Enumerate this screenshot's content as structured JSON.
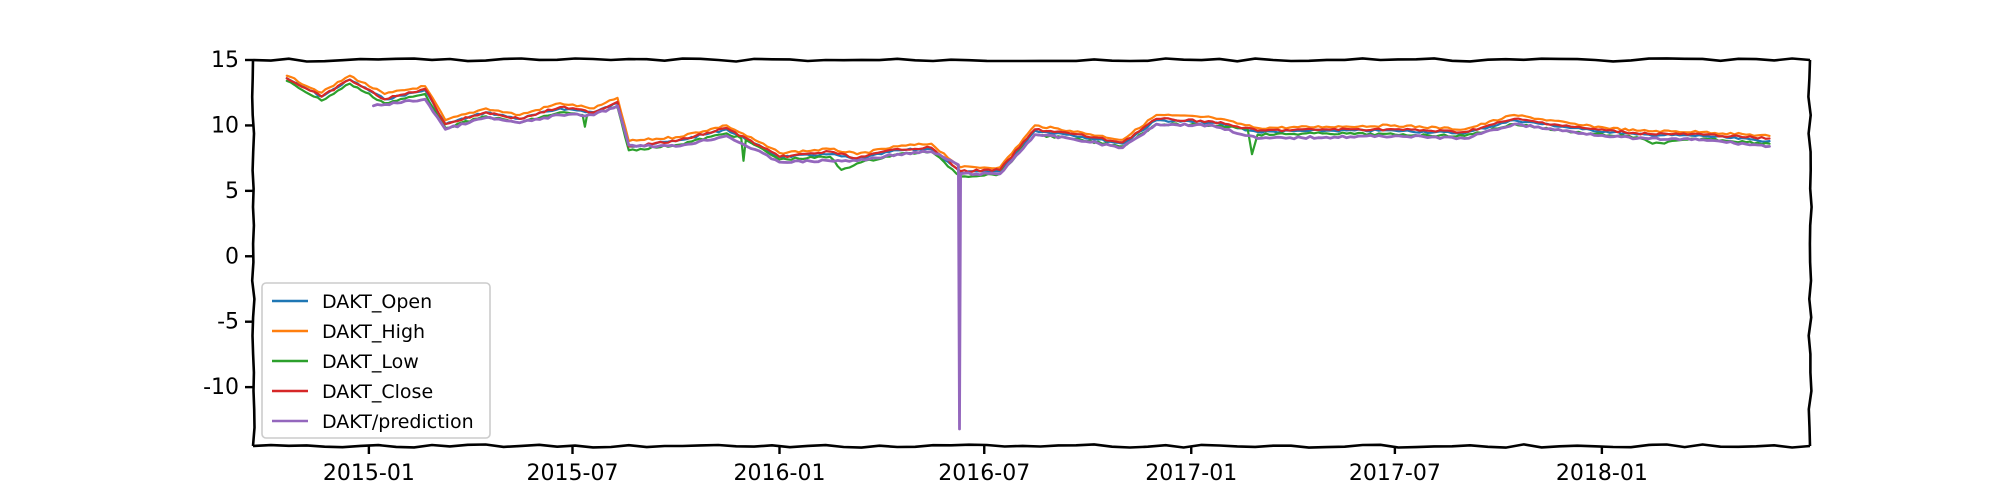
{
  "chart_data": {
    "type": "line",
    "title": "",
    "xlabel": "",
    "ylabel": "",
    "x_range": [
      "2014-09-20",
      "2018-07-05"
    ],
    "ylim": [
      -14.5,
      15
    ],
    "grid": false,
    "legend_placement": "lower-left",
    "x_ticks": [
      "2015-01",
      "2015-07",
      "2016-01",
      "2016-07",
      "2017-01",
      "2017-07",
      "2018-01"
    ],
    "x_tick_dates": [
      "2015-01-01",
      "2015-07-01",
      "2016-01-01",
      "2016-07-01",
      "2017-01-01",
      "2017-07-01",
      "2018-01-01"
    ],
    "y_ticks": [
      15,
      10,
      5,
      0,
      -5,
      -10
    ],
    "y_tick_labels": [
      "15",
      "10",
      "5",
      "0",
      "-5",
      "-10"
    ],
    "series": [
      {
        "name": "DAKT_Open",
        "color": "#1f77b4",
        "points": [
          [
            "2014-10-20",
            13.6
          ],
          [
            "2014-11-20",
            12.2
          ],
          [
            "2014-12-15",
            13.5
          ],
          [
            "2015-01-15",
            12.0
          ],
          [
            "2015-02-20",
            12.7
          ],
          [
            "2015-03-10",
            10.1
          ],
          [
            "2015-04-15",
            11.0
          ],
          [
            "2015-05-15",
            10.5
          ],
          [
            "2015-06-20",
            11.3
          ],
          [
            "2015-07-20",
            11.0
          ],
          [
            "2015-08-10",
            11.7
          ],
          [
            "2015-08-20",
            8.4
          ],
          [
            "2015-10-01",
            8.8
          ],
          [
            "2015-11-15",
            9.7
          ],
          [
            "2016-01-01",
            7.6
          ],
          [
            "2016-02-15",
            7.8
          ],
          [
            "2016-03-10",
            7.4
          ],
          [
            "2016-04-15",
            8.1
          ],
          [
            "2016-05-15",
            8.2
          ],
          [
            "2016-06-10",
            6.4
          ],
          [
            "2016-07-15",
            6.5
          ],
          [
            "2016-08-15",
            9.6
          ],
          [
            "2016-09-15",
            9.3
          ],
          [
            "2016-11-01",
            8.6
          ],
          [
            "2016-12-01",
            10.4
          ],
          [
            "2017-01-20",
            10.2
          ],
          [
            "2017-03-01",
            9.5
          ],
          [
            "2017-05-01",
            9.6
          ],
          [
            "2017-07-01",
            9.6
          ],
          [
            "2017-09-01",
            9.4
          ],
          [
            "2017-10-15",
            10.4
          ],
          [
            "2017-12-15",
            9.7
          ],
          [
            "2018-02-01",
            9.3
          ],
          [
            "2018-04-01",
            9.2
          ],
          [
            "2018-05-30",
            8.8
          ]
        ]
      },
      {
        "name": "DAKT_High",
        "color": "#ff7f0e",
        "points": [
          [
            "2014-10-20",
            13.8
          ],
          [
            "2014-11-20",
            12.5
          ],
          [
            "2014-12-15",
            13.8
          ],
          [
            "2015-01-15",
            12.4
          ],
          [
            "2015-02-20",
            13.0
          ],
          [
            "2015-03-10",
            10.4
          ],
          [
            "2015-04-15",
            11.3
          ],
          [
            "2015-05-15",
            10.8
          ],
          [
            "2015-06-20",
            11.7
          ],
          [
            "2015-07-20",
            11.3
          ],
          [
            "2015-08-10",
            12.1
          ],
          [
            "2015-08-20",
            8.8
          ],
          [
            "2015-10-01",
            9.1
          ],
          [
            "2015-11-15",
            10.0
          ],
          [
            "2016-01-01",
            7.9
          ],
          [
            "2016-02-15",
            8.2
          ],
          [
            "2016-03-10",
            7.8
          ],
          [
            "2016-04-15",
            8.4
          ],
          [
            "2016-05-15",
            8.6
          ],
          [
            "2016-06-10",
            6.8
          ],
          [
            "2016-07-15",
            6.8
          ],
          [
            "2016-08-15",
            10.0
          ],
          [
            "2016-09-15",
            9.6
          ],
          [
            "2016-11-01",
            8.9
          ],
          [
            "2016-12-01",
            10.8
          ],
          [
            "2017-01-20",
            10.6
          ],
          [
            "2017-03-01",
            9.8
          ],
          [
            "2017-05-01",
            9.9
          ],
          [
            "2017-07-01",
            10.0
          ],
          [
            "2017-09-01",
            9.7
          ],
          [
            "2017-10-15",
            10.8
          ],
          [
            "2017-12-15",
            10.0
          ],
          [
            "2018-02-01",
            9.6
          ],
          [
            "2018-04-01",
            9.5
          ],
          [
            "2018-05-30",
            9.2
          ]
        ]
      },
      {
        "name": "DAKT_Low",
        "color": "#2ca02c",
        "points": [
          [
            "2014-10-20",
            13.4
          ],
          [
            "2014-11-20",
            11.9
          ],
          [
            "2014-12-15",
            13.2
          ],
          [
            "2015-01-15",
            11.7
          ],
          [
            "2015-02-20",
            12.4
          ],
          [
            "2015-03-10",
            9.8
          ],
          [
            "2015-04-15",
            10.7
          ],
          [
            "2015-05-15",
            10.2
          ],
          [
            "2015-06-20",
            11.0
          ],
          [
            "2015-07-10",
            10.8
          ],
          [
            "2015-07-12",
            9.9
          ],
          [
            "2015-07-14",
            10.8
          ],
          [
            "2015-08-10",
            11.4
          ],
          [
            "2015-08-20",
            8.1
          ],
          [
            "2015-10-01",
            8.5
          ],
          [
            "2015-11-15",
            9.4
          ],
          [
            "2015-11-28",
            9.0
          ],
          [
            "2015-11-30",
            7.3
          ],
          [
            "2015-12-02",
            8.9
          ],
          [
            "2016-01-01",
            7.4
          ],
          [
            "2016-02-15",
            7.6
          ],
          [
            "2016-02-25",
            6.6
          ],
          [
            "2016-03-10",
            7.1
          ],
          [
            "2016-04-15",
            7.8
          ],
          [
            "2016-05-15",
            8.0
          ],
          [
            "2016-06-10",
            6.1
          ],
          [
            "2016-07-15",
            6.3
          ],
          [
            "2016-08-15",
            9.3
          ],
          [
            "2016-09-15",
            9.0
          ],
          [
            "2016-11-01",
            8.4
          ],
          [
            "2016-12-01",
            10.1
          ],
          [
            "2017-01-20",
            10.0
          ],
          [
            "2017-02-20",
            9.8
          ],
          [
            "2017-02-24",
            7.8
          ],
          [
            "2017-03-01",
            9.3
          ],
          [
            "2017-05-01",
            9.4
          ],
          [
            "2017-07-01",
            9.3
          ],
          [
            "2017-09-01",
            9.2
          ],
          [
            "2017-10-15",
            10.1
          ],
          [
            "2017-12-15",
            9.4
          ],
          [
            "2018-02-01",
            9.1
          ],
          [
            "2018-02-15",
            8.6
          ],
          [
            "2018-04-01",
            9.0
          ],
          [
            "2018-05-30",
            8.6
          ]
        ]
      },
      {
        "name": "DAKT_Close",
        "color": "#d62728",
        "points": [
          [
            "2014-10-20",
            13.6
          ],
          [
            "2014-11-20",
            12.2
          ],
          [
            "2014-12-15",
            13.5
          ],
          [
            "2015-01-15",
            12.0
          ],
          [
            "2015-02-20",
            12.8
          ],
          [
            "2015-03-10",
            10.1
          ],
          [
            "2015-04-15",
            11.0
          ],
          [
            "2015-05-15",
            10.5
          ],
          [
            "2015-06-20",
            11.4
          ],
          [
            "2015-07-20",
            11.0
          ],
          [
            "2015-08-10",
            11.8
          ],
          [
            "2015-08-20",
            8.4
          ],
          [
            "2015-10-01",
            8.8
          ],
          [
            "2015-11-15",
            9.8
          ],
          [
            "2016-01-01",
            7.6
          ],
          [
            "2016-02-15",
            8.0
          ],
          [
            "2016-03-10",
            7.5
          ],
          [
            "2016-04-15",
            8.2
          ],
          [
            "2016-05-15",
            8.3
          ],
          [
            "2016-06-10",
            6.5
          ],
          [
            "2016-07-15",
            6.6
          ],
          [
            "2016-08-15",
            9.7
          ],
          [
            "2016-09-15",
            9.4
          ],
          [
            "2016-11-01",
            8.7
          ],
          [
            "2016-12-01",
            10.5
          ],
          [
            "2017-01-20",
            10.3
          ],
          [
            "2017-03-01",
            9.6
          ],
          [
            "2017-05-01",
            9.7
          ],
          [
            "2017-07-01",
            9.7
          ],
          [
            "2017-09-01",
            9.5
          ],
          [
            "2017-10-15",
            10.5
          ],
          [
            "2017-12-15",
            9.8
          ],
          [
            "2018-02-01",
            9.4
          ],
          [
            "2018-04-01",
            9.3
          ],
          [
            "2018-05-30",
            9.0
          ]
        ]
      },
      {
        "name": "DAKT/prediction",
        "color": "#9467bd",
        "points": [
          [
            "2015-01-05",
            11.5
          ],
          [
            "2015-02-20",
            12.0
          ],
          [
            "2015-03-10",
            9.7
          ],
          [
            "2015-04-15",
            10.6
          ],
          [
            "2015-05-15",
            10.2
          ],
          [
            "2015-06-20",
            10.8
          ],
          [
            "2015-07-20",
            10.8
          ],
          [
            "2015-08-10",
            11.5
          ],
          [
            "2015-08-20",
            8.5
          ],
          [
            "2015-10-01",
            8.4
          ],
          [
            "2015-11-15",
            9.2
          ],
          [
            "2016-01-01",
            7.2
          ],
          [
            "2016-02-15",
            7.3
          ],
          [
            "2016-03-10",
            7.3
          ],
          [
            "2016-04-15",
            7.8
          ],
          [
            "2016-05-15",
            8.0
          ],
          [
            "2016-06-08",
            7.0
          ],
          [
            "2016-06-09",
            -13.2
          ],
          [
            "2016-06-10",
            6.3
          ],
          [
            "2016-07-15",
            6.3
          ],
          [
            "2016-08-15",
            9.3
          ],
          [
            "2016-09-15",
            9.0
          ],
          [
            "2016-11-01",
            8.3
          ],
          [
            "2016-12-01",
            10.1
          ],
          [
            "2017-01-20",
            10.0
          ],
          [
            "2017-03-01",
            9.0
          ],
          [
            "2017-05-01",
            9.1
          ],
          [
            "2017-07-01",
            9.2
          ],
          [
            "2017-09-01",
            9.0
          ],
          [
            "2017-10-15",
            10.1
          ],
          [
            "2017-12-15",
            9.4
          ],
          [
            "2018-02-01",
            9.0
          ],
          [
            "2018-04-01",
            8.9
          ],
          [
            "2018-05-30",
            8.4
          ]
        ]
      }
    ]
  }
}
